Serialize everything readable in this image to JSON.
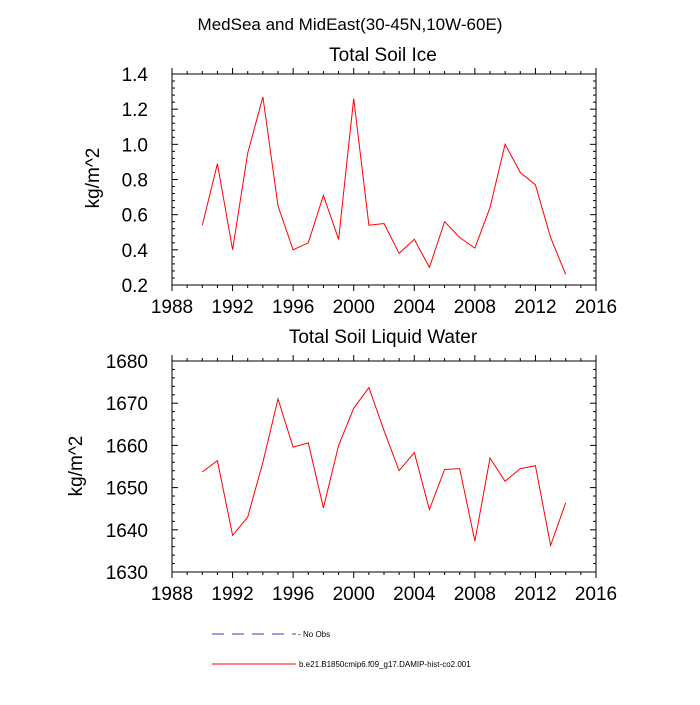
{
  "figure": {
    "suptitle": "MedSea and MidEast(30-45N,10W-60E)"
  },
  "chart_data": [
    {
      "type": "line",
      "title": "Total Soil Ice",
      "xlabel": "",
      "ylabel": "kg/m^2",
      "xlim": [
        1988,
        2016
      ],
      "ylim": [
        0.2,
        1.4
      ],
      "xticks": [
        1988,
        1992,
        1996,
        2000,
        2004,
        2008,
        2012,
        2016
      ],
      "yticks": [
        0.2,
        0.4,
        0.6,
        0.8,
        1.0,
        1.2,
        1.4
      ],
      "ytick_labels": [
        "0.2",
        "0.4",
        "0.6",
        "0.8",
        "1.0",
        "1.2",
        "1.4"
      ],
      "x": [
        1990,
        1991,
        1992,
        1993,
        1994,
        1995,
        1996,
        1997,
        1998,
        1999,
        2000,
        2001,
        2002,
        2003,
        2004,
        2005,
        2006,
        2007,
        2008,
        2009,
        2010,
        2011,
        2012,
        2013,
        2014
      ],
      "series": [
        {
          "name": "b.e21.B1850cmip6.f09_g17.DAMIP-hist-co2.001",
          "color": "#ff0000",
          "values": [
            0.54,
            0.89,
            0.4,
            0.95,
            1.27,
            0.65,
            0.4,
            0.44,
            0.71,
            0.46,
            1.26,
            0.54,
            0.55,
            0.38,
            0.46,
            0.3,
            0.56,
            0.47,
            0.41,
            0.64,
            1.0,
            0.84,
            0.77,
            0.47,
            0.26
          ]
        }
      ]
    },
    {
      "type": "line",
      "title": "Total Soil Liquid Water",
      "xlabel": "",
      "ylabel": "kg/m^2",
      "xlim": [
        1988,
        2016
      ],
      "ylim": [
        1630,
        1680
      ],
      "xticks": [
        1988,
        1992,
        1996,
        2000,
        2004,
        2008,
        2012,
        2016
      ],
      "yticks": [
        1630,
        1640,
        1650,
        1660,
        1670,
        1680
      ],
      "ytick_labels": [
        "1630",
        "1640",
        "1650",
        "1660",
        "1670",
        "1680"
      ],
      "x": [
        1990,
        1991,
        1992,
        1993,
        1994,
        1995,
        1996,
        1997,
        1998,
        1999,
        2000,
        2001,
        2002,
        2003,
        2004,
        2005,
        2006,
        2007,
        2008,
        2009,
        2010,
        2011,
        2012,
        2013,
        2014
      ],
      "series": [
        {
          "name": "b.e21.B1850cmip6.f09_g17.DAMIP-hist-co2.001",
          "color": "#ff0000",
          "values": [
            1653.7,
            1656.4,
            1638.7,
            1643.0,
            1656.0,
            1671.0,
            1659.6,
            1660.6,
            1645.2,
            1660.0,
            1668.8,
            1673.7,
            1663.5,
            1654.0,
            1658.3,
            1644.8,
            1654.3,
            1654.5,
            1637.3,
            1657.0,
            1651.5,
            1654.5,
            1655.2,
            1636.3,
            1646.4
          ]
        }
      ]
    }
  ],
  "legend": {
    "items": [
      {
        "label": "No Obs",
        "color": "#3b3bb0",
        "style": "dashed"
      },
      {
        "label": "b.e21.B1850cmip6.f09_g17.DAMIP-hist-co2.001",
        "color": "#ff0000",
        "style": "solid"
      }
    ]
  }
}
